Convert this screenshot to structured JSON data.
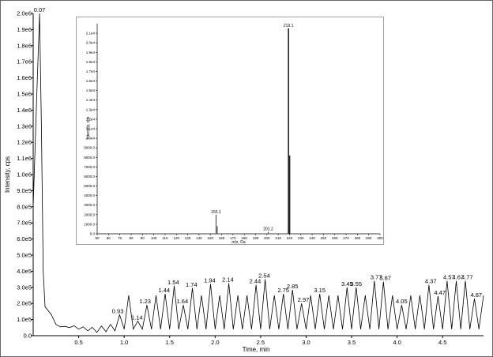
{
  "chart_data": [
    {
      "type": "line",
      "title": "",
      "xlabel": "Time, min",
      "ylabel": "Intensity, cps",
      "xlim": [
        0,
        4.95
      ],
      "ylim": [
        0,
        2000000.0
      ],
      "grid": false,
      "legend": "none",
      "x_ticks": [
        {
          "v": 0.5,
          "label": "0.5"
        },
        {
          "v": 1.0,
          "label": "1.0"
        },
        {
          "v": 1.5,
          "label": "1.5"
        },
        {
          "v": 2.0,
          "label": "2.0"
        },
        {
          "v": 2.5,
          "label": "2.5"
        },
        {
          "v": 3.0,
          "label": "3.0"
        },
        {
          "v": 3.5,
          "label": "3.5"
        },
        {
          "v": 4.0,
          "label": "4.0"
        },
        {
          "v": 4.5,
          "label": "4.5"
        }
      ],
      "y_ticks": [
        {
          "v": 0,
          "label": "0.0"
        },
        {
          "v": 100000,
          "label": "1.0e5"
        },
        {
          "v": 200000,
          "label": "2.0e5"
        },
        {
          "v": 300000,
          "label": "3.0e5"
        },
        {
          "v": 400000,
          "label": "4.0e5"
        },
        {
          "v": 500000,
          "label": "5.0e5"
        },
        {
          "v": 600000,
          "label": "6.0e5"
        },
        {
          "v": 700000,
          "label": "7.0e5"
        },
        {
          "v": 800000,
          "label": "8.0e5"
        },
        {
          "v": 900000,
          "label": "9.0e5"
        },
        {
          "v": 1000000,
          "label": "1.0e6"
        },
        {
          "v": 1100000,
          "label": "1.1e6"
        },
        {
          "v": 1200000,
          "label": "1.2e6"
        },
        {
          "v": 1300000,
          "label": "1.3e6"
        },
        {
          "v": 1400000,
          "label": "1.4e6"
        },
        {
          "v": 1500000,
          "label": "1.5e6"
        },
        {
          "v": 1600000,
          "label": "1.6e6"
        },
        {
          "v": 1700000,
          "label": "1.7e6"
        },
        {
          "v": 1800000,
          "label": "1.8e6"
        },
        {
          "v": 1900000,
          "label": "1.9e6"
        },
        {
          "v": 2000000,
          "label": "2.0e6"
        }
      ],
      "peak_labels": [
        {
          "t": 0.07,
          "y": 2000000,
          "label": "0.07"
        },
        {
          "t": 0.93,
          "y": 130000,
          "label": "0.93"
        },
        {
          "t": 1.14,
          "y": 90000,
          "label": "1.14"
        },
        {
          "t": 1.23,
          "y": 190000,
          "label": "1.23"
        },
        {
          "t": 1.44,
          "y": 260000,
          "label": "1.44"
        },
        {
          "t": 1.54,
          "y": 310000,
          "label": "1.54"
        },
        {
          "t": 1.64,
          "y": 190000,
          "label": "1.64"
        },
        {
          "t": 1.74,
          "y": 295000,
          "label": "1.74"
        },
        {
          "t": 1.94,
          "y": 320000,
          "label": "1.94"
        },
        {
          "t": 2.14,
          "y": 325000,
          "label": "2.14"
        },
        {
          "t": 2.44,
          "y": 315000,
          "label": "2.44"
        },
        {
          "t": 2.54,
          "y": 350000,
          "label": "2.54"
        },
        {
          "t": 2.75,
          "y": 260000,
          "label": "2.75"
        },
        {
          "t": 2.85,
          "y": 285000,
          "label": "2.85"
        },
        {
          "t": 2.97,
          "y": 200000,
          "label": "2.97"
        },
        {
          "t": 3.15,
          "y": 260000,
          "label": "3.15"
        },
        {
          "t": 3.45,
          "y": 300000,
          "label": "3.45"
        },
        {
          "t": 3.55,
          "y": 300000,
          "label": "3.55"
        },
        {
          "t": 3.77,
          "y": 340000,
          "label": "3.77"
        },
        {
          "t": 3.87,
          "y": 335000,
          "label": "3.87"
        },
        {
          "t": 4.05,
          "y": 190000,
          "label": "4.05"
        },
        {
          "t": 4.37,
          "y": 315000,
          "label": "4.37"
        },
        {
          "t": 4.47,
          "y": 245000,
          "label": "4.47"
        },
        {
          "t": 4.57,
          "y": 340000,
          "label": "4.57"
        },
        {
          "t": 4.67,
          "y": 340000,
          "label": "4.67"
        },
        {
          "t": 4.77,
          "y": 340000,
          "label": "4.77"
        },
        {
          "t": 4.87,
          "y": 230000,
          "label": "4.87"
        }
      ],
      "trace": {
        "start": [
          [
            0,
            800000
          ],
          [
            0.04,
            1500000
          ],
          [
            0.07,
            2000000
          ],
          [
            0.09,
            1300000
          ],
          [
            0.11,
            400000
          ],
          [
            0.13,
            180000
          ],
          [
            0.2,
            130000
          ],
          [
            0.25,
            70000
          ],
          [
            0.3,
            55000
          ],
          [
            0.35,
            58000
          ],
          [
            0.4,
            50000
          ],
          [
            0.45,
            62000
          ],
          [
            0.5,
            40000
          ],
          [
            0.55,
            55000
          ],
          [
            0.6,
            30000
          ],
          [
            0.65,
            52000
          ],
          [
            0.7,
            20000
          ],
          [
            0.75,
            60000
          ],
          [
            0.8,
            25000
          ],
          [
            0.85,
            70000
          ],
          [
            0.9,
            30000
          ]
        ],
        "oscillation_from": 0.9,
        "oscillation_to": 4.95,
        "oscillation_period": 0.1,
        "oscillation_low": 40000
      }
    },
    {
      "type": "bar",
      "title": "",
      "xlabel": "m/z, Da",
      "ylabel": "Intensity, cps",
      "xlim": [
        50,
        300
      ],
      "ylim": [
        0,
        22000
      ],
      "x_ticks": [
        {
          "v": 50,
          "label": "50"
        },
        {
          "v": 60,
          "label": "60"
        },
        {
          "v": 70,
          "label": "70"
        },
        {
          "v": 80,
          "label": "80"
        },
        {
          "v": 90,
          "label": "90"
        },
        {
          "v": 100,
          "label": "100"
        },
        {
          "v": 110,
          "label": "110"
        },
        {
          "v": 120,
          "label": "120"
        },
        {
          "v": 130,
          "label": "130"
        },
        {
          "v": 140,
          "label": "140"
        },
        {
          "v": 150,
          "label": "150"
        },
        {
          "v": 160,
          "label": "160"
        },
        {
          "v": 170,
          "label": "170"
        },
        {
          "v": 180,
          "label": "180"
        },
        {
          "v": 190,
          "label": "190"
        },
        {
          "v": 200,
          "label": "200"
        },
        {
          "v": 210,
          "label": "210"
        },
        {
          "v": 220,
          "label": "220"
        },
        {
          "v": 230,
          "label": "230"
        },
        {
          "v": 240,
          "label": "240"
        },
        {
          "v": 250,
          "label": "250"
        },
        {
          "v": 260,
          "label": "260"
        },
        {
          "v": 270,
          "label": "270"
        },
        {
          "v": 280,
          "label": "280"
        },
        {
          "v": 290,
          "label": "290"
        },
        {
          "v": 300,
          "label": "300"
        }
      ],
      "y_ticks": [
        {
          "v": 0,
          "label": "0.0"
        },
        {
          "v": 1000,
          "label": "1000.0"
        },
        {
          "v": 2000,
          "label": "2000.0"
        },
        {
          "v": 3000,
          "label": "3000.0"
        },
        {
          "v": 4000,
          "label": "4000.0"
        },
        {
          "v": 5000,
          "label": "5000.0"
        },
        {
          "v": 6000,
          "label": "6000.0"
        },
        {
          "v": 7000,
          "label": "7000.0"
        },
        {
          "v": 8000,
          "label": "8000.0"
        },
        {
          "v": 9000,
          "label": "9000.0"
        },
        {
          "v": 10000,
          "label": "1.0e4"
        },
        {
          "v": 11000,
          "label": "1.1e4"
        },
        {
          "v": 12000,
          "label": "1.2e4"
        },
        {
          "v": 13000,
          "label": "1.3e4"
        },
        {
          "v": 14000,
          "label": "1.4e4"
        },
        {
          "v": 15000,
          "label": "1.5e4"
        },
        {
          "v": 16000,
          "label": "1.6e4"
        },
        {
          "v": 17000,
          "label": "1.7e4"
        },
        {
          "v": 18000,
          "label": "1.8e4"
        },
        {
          "v": 19000,
          "label": "1.9e4"
        },
        {
          "v": 20000,
          "label": "2.0e4"
        },
        {
          "v": 21000,
          "label": "2.1e4"
        }
      ],
      "peaks": [
        {
          "mz": 155.1,
          "intensity": 2000
        },
        {
          "mz": 156.1,
          "intensity": 800
        },
        {
          "mz": 201.2,
          "intensity": 200
        },
        {
          "mz": 219.1,
          "intensity": 21500
        },
        {
          "mz": 220.1,
          "intensity": 8200
        }
      ],
      "peak_labels": [
        {
          "mz": 155.1,
          "label": "155.1"
        },
        {
          "mz": 201.2,
          "label": "201.2"
        },
        {
          "mz": 219.1,
          "label": "219.1"
        }
      ]
    }
  ]
}
